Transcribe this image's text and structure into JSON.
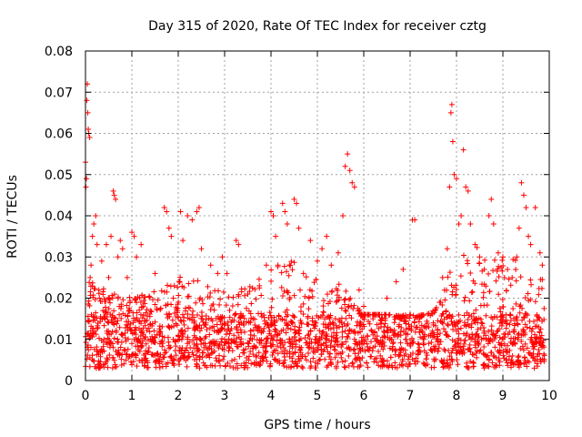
{
  "chart_data": {
    "type": "scatter",
    "title": "Day 315 of 2020, Rate Of TEC Index for receiver cztg",
    "xlabel": "GPS time / hours",
    "ylabel": "ROTI / TECUs",
    "xlim": [
      0,
      10
    ],
    "ylim": [
      0,
      0.08
    ],
    "xticks": [
      0,
      1,
      2,
      3,
      4,
      5,
      6,
      7,
      8,
      9,
      10
    ],
    "yticks": [
      0,
      0.01,
      0.02,
      0.03,
      0.04,
      0.05,
      0.06,
      0.07,
      0.08
    ],
    "ytick_labels": [
      "0",
      "0.01",
      "0.02",
      "0.03",
      "0.04",
      "0.05",
      "0.06",
      "0.07",
      "0.08"
    ],
    "grid": true,
    "marker": "+",
    "marker_color": "#ff0000",
    "series": [
      {
        "name": "ROTI",
        "points": [
          [
            0.0,
            0.053
          ],
          [
            0.01,
            0.047
          ],
          [
            0.02,
            0.049
          ],
          [
            0.03,
            0.068
          ],
          [
            0.04,
            0.072
          ],
          [
            0.05,
            0.065
          ],
          [
            0.06,
            0.061
          ],
          [
            0.07,
            0.06
          ],
          [
            0.09,
            0.059
          ],
          [
            0.1,
            0.025
          ],
          [
            0.12,
            0.028
          ],
          [
            0.15,
            0.035
          ],
          [
            0.18,
            0.038
          ],
          [
            0.22,
            0.04
          ],
          [
            0.25,
            0.033
          ],
          [
            0.3,
            0.02
          ],
          [
            0.35,
            0.029
          ],
          [
            0.45,
            0.033
          ],
          [
            0.5,
            0.025
          ],
          [
            0.55,
            0.035
          ],
          [
            0.6,
            0.046
          ],
          [
            0.62,
            0.045
          ],
          [
            0.65,
            0.044
          ],
          [
            0.7,
            0.03
          ],
          [
            0.75,
            0.034
          ],
          [
            0.8,
            0.032
          ],
          [
            0.9,
            0.025
          ],
          [
            1.0,
            0.036
          ],
          [
            1.05,
            0.035
          ],
          [
            1.1,
            0.03
          ],
          [
            1.2,
            0.033
          ],
          [
            1.5,
            0.026
          ],
          [
            1.7,
            0.042
          ],
          [
            1.75,
            0.041
          ],
          [
            1.8,
            0.037
          ],
          [
            1.85,
            0.035
          ],
          [
            2.05,
            0.041
          ],
          [
            2.1,
            0.034
          ],
          [
            2.2,
            0.04
          ],
          [
            2.3,
            0.039
          ],
          [
            2.4,
            0.041
          ],
          [
            2.45,
            0.042
          ],
          [
            2.5,
            0.032
          ],
          [
            2.7,
            0.028
          ],
          [
            2.85,
            0.026
          ],
          [
            2.95,
            0.03
          ],
          [
            3.05,
            0.026
          ],
          [
            3.25,
            0.034
          ],
          [
            3.3,
            0.033
          ],
          [
            3.5,
            0.021
          ],
          [
            3.75,
            0.023
          ],
          [
            3.9,
            0.028
          ],
          [
            4.0,
            0.041
          ],
          [
            4.05,
            0.04
          ],
          [
            4.1,
            0.035
          ],
          [
            4.15,
            0.028
          ],
          [
            4.25,
            0.043
          ],
          [
            4.3,
            0.041
          ],
          [
            4.35,
            0.038
          ],
          [
            4.5,
            0.044
          ],
          [
            4.55,
            0.043
          ],
          [
            4.6,
            0.037
          ],
          [
            4.7,
            0.026
          ],
          [
            4.85,
            0.034
          ],
          [
            5.0,
            0.029
          ],
          [
            5.1,
            0.032
          ],
          [
            5.2,
            0.035
          ],
          [
            5.3,
            0.028
          ],
          [
            5.45,
            0.031
          ],
          [
            5.55,
            0.04
          ],
          [
            5.6,
            0.052
          ],
          [
            5.65,
            0.055
          ],
          [
            5.7,
            0.051
          ],
          [
            5.75,
            0.048
          ],
          [
            5.8,
            0.047
          ],
          [
            5.9,
            0.022
          ],
          [
            6.0,
            0.018
          ],
          [
            6.2,
            0.015
          ],
          [
            6.5,
            0.02
          ],
          [
            6.7,
            0.024
          ],
          [
            6.85,
            0.027
          ],
          [
            7.05,
            0.039
          ],
          [
            7.1,
            0.039
          ],
          [
            7.3,
            0.013
          ],
          [
            7.5,
            0.014
          ],
          [
            7.7,
            0.025
          ],
          [
            7.8,
            0.032
          ],
          [
            7.85,
            0.047
          ],
          [
            7.88,
            0.065
          ],
          [
            7.9,
            0.067
          ],
          [
            7.92,
            0.058
          ],
          [
            7.95,
            0.05
          ],
          [
            8.0,
            0.049
          ],
          [
            8.05,
            0.038
          ],
          [
            8.1,
            0.04
          ],
          [
            8.15,
            0.056
          ],
          [
            8.2,
            0.047
          ],
          [
            8.25,
            0.046
          ],
          [
            8.3,
            0.038
          ],
          [
            8.4,
            0.033
          ],
          [
            8.5,
            0.03
          ],
          [
            8.6,
            0.027
          ],
          [
            8.7,
            0.04
          ],
          [
            8.75,
            0.044
          ],
          [
            8.8,
            0.038
          ],
          [
            8.9,
            0.031
          ],
          [
            9.0,
            0.03
          ],
          [
            9.1,
            0.027
          ],
          [
            9.2,
            0.025
          ],
          [
            9.3,
            0.03
          ],
          [
            9.35,
            0.037
          ],
          [
            9.4,
            0.048
          ],
          [
            9.45,
            0.045
          ],
          [
            9.5,
            0.042
          ],
          [
            9.55,
            0.035
          ],
          [
            9.6,
            0.033
          ],
          [
            9.7,
            0.042
          ],
          [
            9.8,
            0.031
          ],
          [
            9.85,
            0.028
          ],
          [
            0.2,
            0.012
          ],
          [
            0.4,
            0.01
          ],
          [
            0.6,
            0.008
          ],
          [
            0.8,
            0.011
          ],
          [
            1.0,
            0.009
          ],
          [
            1.2,
            0.008
          ],
          [
            1.4,
            0.01
          ],
          [
            1.6,
            0.012
          ],
          [
            1.8,
            0.013
          ],
          [
            2.0,
            0.011
          ],
          [
            2.2,
            0.009
          ],
          [
            2.4,
            0.01
          ],
          [
            2.6,
            0.008
          ],
          [
            2.8,
            0.009
          ],
          [
            3.0,
            0.01
          ],
          [
            3.2,
            0.011
          ],
          [
            3.4,
            0.009
          ],
          [
            3.6,
            0.01
          ],
          [
            3.8,
            0.012
          ],
          [
            4.0,
            0.011
          ],
          [
            4.2,
            0.009
          ],
          [
            4.4,
            0.01
          ],
          [
            4.6,
            0.012
          ],
          [
            4.8,
            0.011
          ],
          [
            5.0,
            0.009
          ],
          [
            5.2,
            0.01
          ],
          [
            5.4,
            0.011
          ],
          [
            5.6,
            0.012
          ],
          [
            5.8,
            0.01
          ],
          [
            6.0,
            0.009
          ],
          [
            6.2,
            0.008
          ],
          [
            6.4,
            0.009
          ],
          [
            6.6,
            0.01
          ],
          [
            6.8,
            0.011
          ],
          [
            7.0,
            0.009
          ],
          [
            7.2,
            0.008
          ],
          [
            7.4,
            0.009
          ],
          [
            7.6,
            0.01
          ],
          [
            7.8,
            0.011
          ],
          [
            8.0,
            0.012
          ],
          [
            8.2,
            0.011
          ],
          [
            8.4,
            0.01
          ],
          [
            8.6,
            0.012
          ],
          [
            8.8,
            0.011
          ],
          [
            9.0,
            0.01
          ],
          [
            9.2,
            0.009
          ],
          [
            9.4,
            0.011
          ],
          [
            9.6,
            0.01
          ],
          [
            9.8,
            0.009
          ]
        ]
      }
    ],
    "background_band": {
      "description": "dense cloud of points across the whole range",
      "x_range": [
        0,
        9.9
      ],
      "y_base_range": [
        0.003,
        0.016
      ],
      "envelope": [
        [
          0.0,
          0.025
        ],
        [
          0.5,
          0.022
        ],
        [
          1.0,
          0.02
        ],
        [
          1.5,
          0.022
        ],
        [
          2.0,
          0.026
        ],
        [
          2.5,
          0.024
        ],
        [
          3.0,
          0.022
        ],
        [
          3.5,
          0.023
        ],
        [
          4.0,
          0.028
        ],
        [
          4.5,
          0.03
        ],
        [
          5.0,
          0.025
        ],
        [
          5.5,
          0.024
        ],
        [
          6.0,
          0.016
        ],
        [
          6.5,
          0.016
        ],
        [
          7.0,
          0.014
        ],
        [
          7.5,
          0.017
        ],
        [
          8.0,
          0.03
        ],
        [
          8.5,
          0.033
        ],
        [
          9.0,
          0.03
        ],
        [
          9.5,
          0.03
        ],
        [
          9.9,
          0.028
        ]
      ],
      "count": 2200
    }
  }
}
